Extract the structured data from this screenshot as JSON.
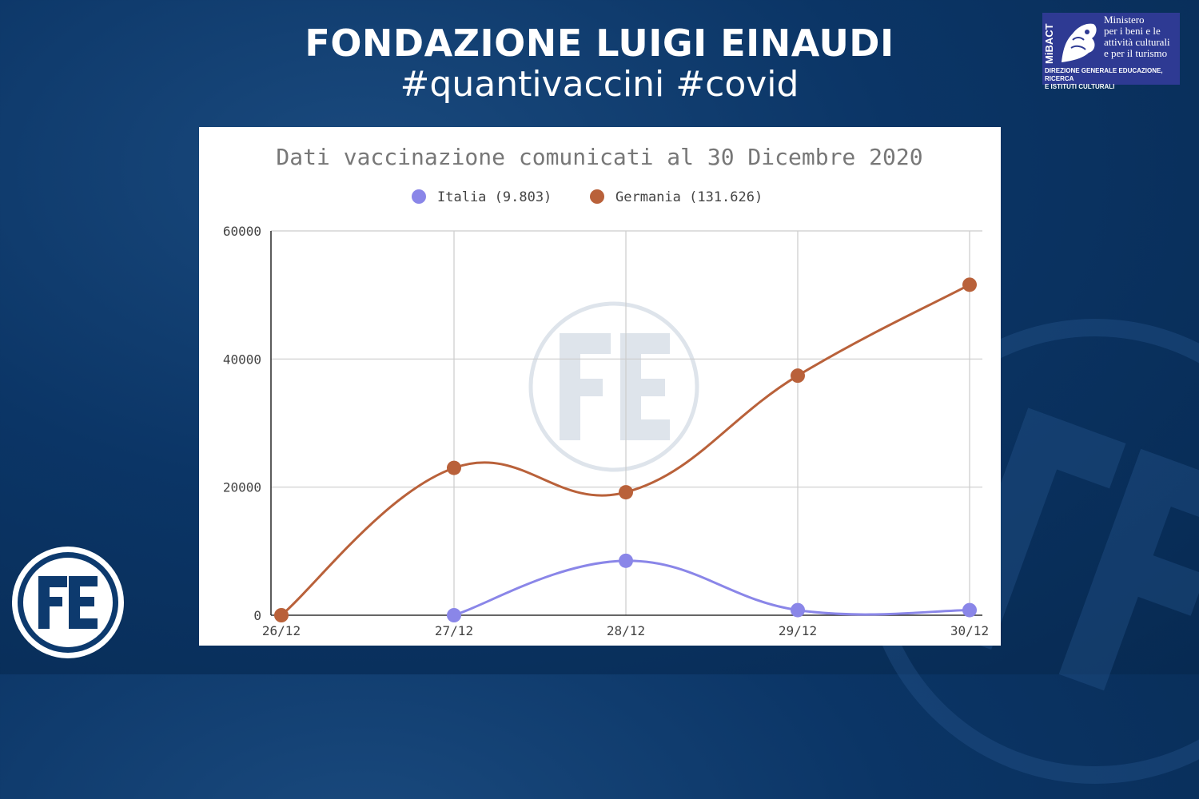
{
  "header": {
    "title": "FONDAZIONE LUIGI EINAUDI",
    "subtitle": "#quantivaccini #covid"
  },
  "mibact_logo": {
    "vertical_text": "MiBACT",
    "name_lines": [
      "Ministero",
      "per i beni e le",
      "attività culturali",
      "e per il turismo"
    ],
    "direction_lines": [
      "DIREZIONE GENERALE EDUCAZIONE, RICERCA",
      "E ISTITUTI CULTURALI"
    ]
  },
  "colors": {
    "background": "#0b3566",
    "italia": "#8a86e8",
    "germania": "#b9613a"
  },
  "chart_data": {
    "type": "line",
    "title": "Dati vaccinazione comunicati al 30 Dicembre 2020",
    "categories": [
      "26/12",
      "27/12",
      "28/12",
      "29/12",
      "30/12"
    ],
    "series": [
      {
        "name": "Italia (9.803)",
        "color": "#8a86e8",
        "values": [
          null,
          0,
          8500,
          800,
          800
        ]
      },
      {
        "name": "Germania (131.626)",
        "color": "#b9613a",
        "values": [
          0,
          23000,
          19200,
          37400,
          51600
        ]
      }
    ],
    "yticks": [
      "0",
      "20000",
      "40000",
      "60000"
    ],
    "ylim": [
      0,
      60000
    ],
    "grid": true,
    "legend_position": "top"
  }
}
